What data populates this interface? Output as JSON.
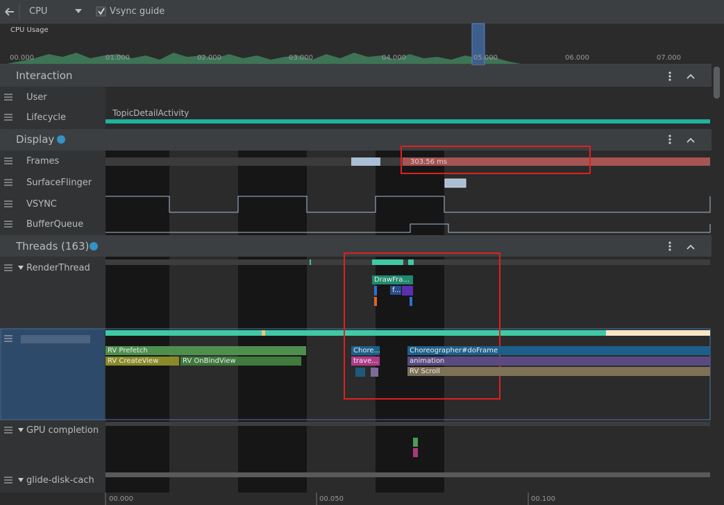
{
  "toolbar": {
    "selector": "CPU",
    "vsync_guide": "Vsync guide"
  },
  "cpu_usage": {
    "label": "CPU Usage",
    "ticks": [
      "00.000",
      "01.000",
      "02.000",
      "03.000",
      "04.000",
      "05.000",
      "06.000",
      "07.000"
    ]
  },
  "sections": [
    {
      "title": "Interaction",
      "rows": [
        "User",
        "Lifecycle"
      ]
    },
    {
      "title": "Display",
      "rows": [
        "Frames",
        "SurfaceFlinger",
        "VSYNC",
        "BufferQueue"
      ]
    },
    {
      "title": "Threads (163)",
      "rows": [
        "RenderThread",
        "GPU completion",
        "glide-disk-cach"
      ]
    }
  ],
  "lifecycle_event": "TopicDetailActivity",
  "frames_event": "303.56 ms",
  "render_thread_slices": [
    "DrawFra...",
    "f..."
  ],
  "main_thread_slices": [
    "RV Prefetch",
    "RV CreateView",
    "RV OnBindView",
    "Chore...",
    "trave...",
    "Choreographer#doFrame",
    "animation",
    "RV Scroll"
  ],
  "time_axis": [
    "00.000",
    "00.050",
    "00.100"
  ]
}
